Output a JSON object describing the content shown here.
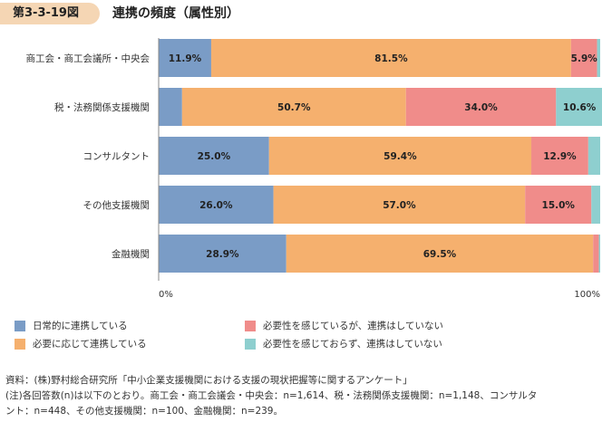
{
  "header": {
    "figure_number": "第3-3-19図",
    "title": "連携の頻度（属性別）"
  },
  "chart_data": {
    "type": "bar",
    "orientation": "horizontal",
    "stacked": true,
    "normalized_percent": true,
    "categories": [
      "商工会・商工会議所・中央会",
      "税・法務関係支援機関",
      "コンサルタント",
      "その他支援機関",
      "金融機関"
    ],
    "series": [
      {
        "name": "日常的に連携している",
        "color": "#7a9cc6",
        "values": [
          11.9,
          5.3,
          25.0,
          26.0,
          28.9
        ],
        "labels": [
          "11.9%",
          "",
          "25.0%",
          "26.0%",
          "28.9%"
        ]
      },
      {
        "name": "必要に応じて連携している",
        "color": "#f5b06e",
        "values": [
          81.5,
          50.7,
          59.4,
          57.0,
          69.5
        ],
        "labels": [
          "81.5%",
          "50.7%",
          "59.4%",
          "57.0%",
          "69.5%"
        ]
      },
      {
        "name": "必要性を感じているが、連携はしていない",
        "color": "#f08c8a",
        "values": [
          5.9,
          34.0,
          12.9,
          15.0,
          1.3
        ],
        "labels": [
          "5.9%",
          "34.0%",
          "12.9%",
          "15.0%",
          ""
        ]
      },
      {
        "name": "必要性を感じておらず、連携はしていない",
        "color": "#8ecfcf",
        "values": [
          0.7,
          10.6,
          2.7,
          2.0,
          0.3
        ],
        "labels": [
          "",
          "10.6%",
          "",
          "",
          ""
        ]
      }
    ],
    "xlim": [
      0,
      100
    ],
    "ticks": [
      "0%",
      "100%"
    ],
    "legend_position": "bottom"
  },
  "notes": {
    "source": "資料：(株)野村総合研究所「中小企業支援機関における支援の現状把握等に関するアンケート」",
    "note_line1": "(注)各回答数(n)は以下のとおり。商工会・商工会議会・中央会：n=1,614、税・法務関係支援機関：n=1,148、コンサルタ",
    "note_line2": "ント：n=448、その他支援機関：n=100、金融機関：n=239。"
  }
}
